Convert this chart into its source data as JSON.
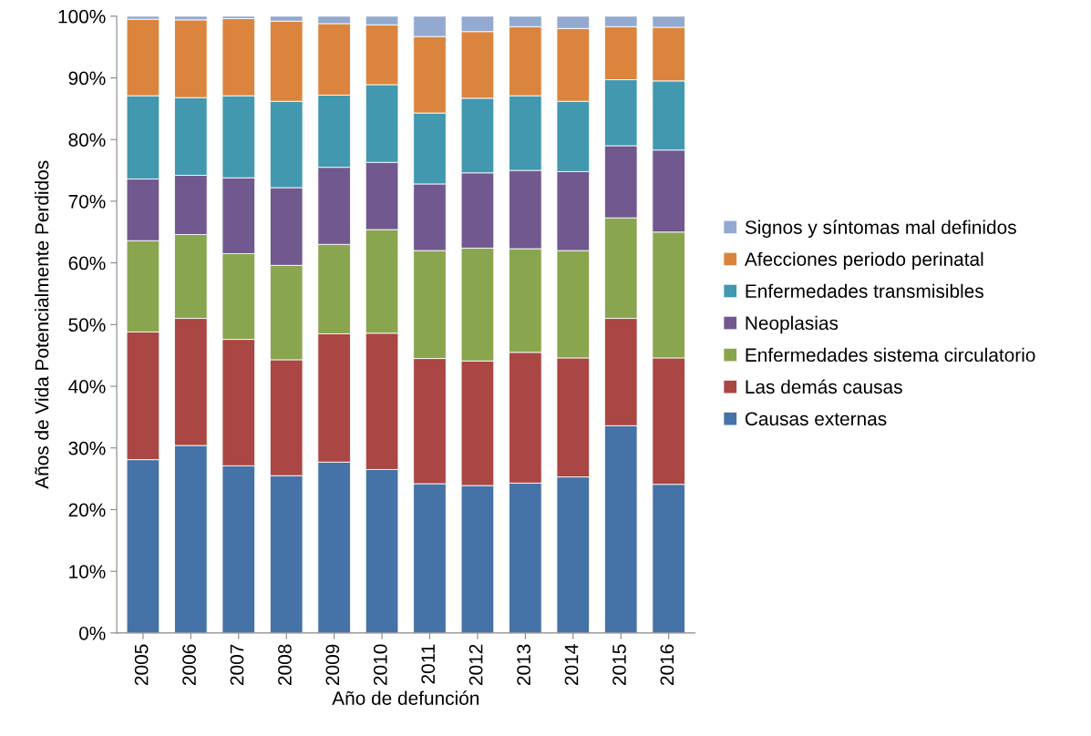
{
  "chart_data": {
    "type": "bar",
    "stacked": true,
    "xlabel": "Año de defunción",
    "ylabel": "Años de Vida Potencialmente Perdidos",
    "categories": [
      "2005",
      "2006",
      "2007",
      "2008",
      "2009",
      "2010",
      "2011",
      "2012",
      "2013",
      "2014",
      "2015",
      "2016"
    ],
    "series": [
      {
        "name": "Causas externas",
        "color": "#4572a7",
        "values": [
          28.1,
          30.4,
          27.1,
          25.5,
          27.7,
          26.5,
          24.2,
          23.9,
          24.3,
          25.3,
          33.6,
          24.1
        ]
      },
      {
        "name": "Las demás causas",
        "color": "#aa4643",
        "values": [
          20.7,
          20.6,
          20.5,
          18.8,
          20.8,
          22.1,
          20.3,
          20.2,
          21.2,
          19.3,
          17.4,
          20.5
        ]
      },
      {
        "name": "Enfermedades sistema circulatorio",
        "color": "#89a54e",
        "values": [
          14.8,
          13.6,
          13.9,
          15.3,
          14.5,
          16.8,
          17.5,
          18.3,
          16.8,
          17.4,
          16.3,
          20.4
        ]
      },
      {
        "name": "Neoplasias",
        "color": "#71588f",
        "values": [
          10.0,
          9.6,
          12.3,
          12.6,
          12.5,
          10.9,
          10.8,
          12.2,
          12.7,
          12.8,
          11.7,
          13.3
        ]
      },
      {
        "name": "Enfermedades transmisibles",
        "color": "#4198af",
        "values": [
          13.5,
          12.6,
          13.3,
          14.0,
          11.7,
          12.6,
          11.5,
          12.1,
          12.1,
          11.4,
          10.7,
          11.2
        ]
      },
      {
        "name": "Afecciones periodo perinatal",
        "color": "#db843d",
        "values": [
          12.4,
          12.6,
          12.5,
          13.0,
          11.6,
          9.7,
          12.4,
          10.8,
          11.2,
          11.8,
          8.6,
          8.7
        ]
      },
      {
        "name": "Signos y síntomas mal definidos",
        "color": "#93a9cf",
        "values": [
          0.5,
          0.6,
          0.4,
          0.8,
          1.2,
          1.4,
          3.3,
          2.5,
          1.7,
          2.0,
          1.7,
          1.8
        ]
      }
    ],
    "ylim": [
      0,
      100
    ],
    "yticks": [
      {
        "value": 0,
        "label": "0%"
      },
      {
        "value": 10,
        "label": "10%"
      },
      {
        "value": 20,
        "label": "20%"
      },
      {
        "value": 30,
        "label": "30%"
      },
      {
        "value": 40,
        "label": "40%"
      },
      {
        "value": 50,
        "label": "50%"
      },
      {
        "value": 60,
        "label": "60%"
      },
      {
        "value": 70,
        "label": "70%"
      },
      {
        "value": 80,
        "label": "80%"
      },
      {
        "value": 90,
        "label": "90%"
      },
      {
        "value": 100,
        "label": "100%"
      }
    ],
    "grid": false,
    "legend": "right"
  }
}
